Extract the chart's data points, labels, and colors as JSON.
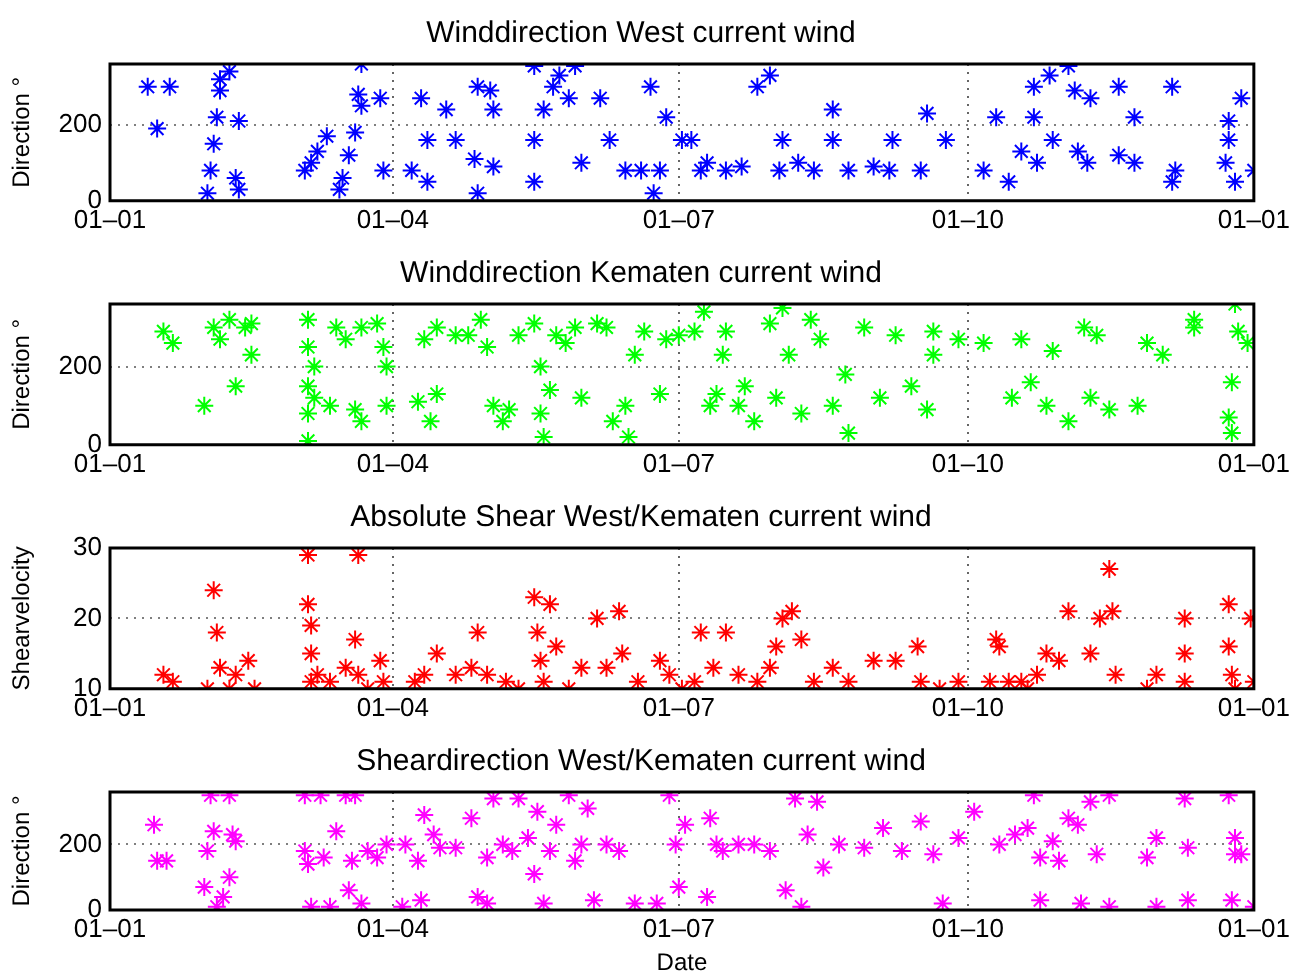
{
  "chart_data": [
    {
      "type": "scatter",
      "title": "Winddirection West current wind",
      "ylabel": "Direction °",
      "xlim": [
        "--01-01",
        "--12-31"
      ],
      "xticks": [
        {
          "value": "--01-01",
          "label": "01–01"
        },
        {
          "value": "--04-01",
          "label": "01–04"
        },
        {
          "value": "--07-01",
          "label": "01–07"
        },
        {
          "value": "--10-01",
          "label": "01–10"
        },
        {
          "value": "--12-31",
          "label": "01–01"
        }
      ],
      "ylim": [
        0,
        360
      ],
      "yticks": [
        0,
        200
      ],
      "grid": true,
      "marker": "cross",
      "x": [
        "--01-13",
        "--01-20",
        "--01-16",
        "--02-01",
        "--02-02",
        "--02-03",
        "--02-04",
        "--02-05",
        "--02-05",
        "--02-08",
        "--02-10",
        "--02-11",
        "--02-11",
        "--03-04",
        "--03-06",
        "--03-08",
        "--03-11",
        "--03-15",
        "--03-16",
        "--03-18",
        "--03-20",
        "--03-21",
        "--03-22",
        "--03-22",
        "--03-28",
        "--03-29",
        "--04-10",
        "--04-12",
        "--04-07",
        "--04-12",
        "--04-18",
        "--04-21",
        "--04-27",
        "--04-28",
        "--05-03",
        "--04-28",
        "--05-03",
        "--05-02",
        "--05-16",
        "--05-16",
        "--05-19",
        "--05-22",
        "--05-24",
        "--05-27",
        "--05-29",
        "--05-31",
        "--05-16",
        "--06-06",
        "--06-09",
        "--06-14",
        "--06-19",
        "--06-22",
        "--06-23",
        "--06-25",
        "--06-27",
        "--07-02",
        "--07-05",
        "--07-08",
        "--07-10",
        "--07-16",
        "--07-21",
        "--07-26",
        "--07-30",
        "--08-02",
        "--08-03",
        "--08-08",
        "--08-13",
        "--08-19",
        "--08-19",
        "--08-24",
        "--09-01",
        "--09-06",
        "--09-07",
        "--09-18",
        "--09-24",
        "--09-16",
        "--10-06",
        "--10-10",
        "--10-14",
        "--10-18",
        "--10-22",
        "--10-23",
        "--10-22",
        "--10-28",
        "--10-27",
        "--11-02",
        "--11-05",
        "--11-04",
        "--11-09",
        "--11-08",
        "--11-18",
        "--11-23",
        "--11-23",
        "--11-18",
        "--12-05",
        "--12-05",
        "--12-06",
        "--12-22",
        "--12-23",
        "--12-25",
        "--12-27",
        "--12-23",
        "--12-31"
      ],
      "series": [
        {
          "color": "#0000ff",
          "values": [
            300,
            300,
            190,
            20,
            80,
            150,
            220,
            290,
            320,
            340,
            60,
            210,
            30,
            80,
            100,
            130,
            170,
            30,
            60,
            120,
            180,
            280,
            360,
            250,
            270,
            80,
            270,
            160,
            80,
            50,
            240,
            160,
            110,
            300,
            240,
            20,
            90,
            290,
            355,
            50,
            240,
            300,
            330,
            270,
            355,
            100,
            160,
            270,
            160,
            80,
            80,
            300,
            20,
            80,
            220,
            160,
            160,
            80,
            100,
            80,
            90,
            300,
            330,
            80,
            160,
            100,
            80,
            240,
            160,
            80,
            90,
            80,
            160,
            230,
            160,
            80,
            80,
            220,
            50,
            130,
            300,
            100,
            220,
            160,
            330,
            355,
            130,
            290,
            270,
            100,
            300,
            220,
            100,
            120,
            300,
            50,
            80,
            100,
            160,
            50,
            270,
            210,
            80
          ]
        }
      ]
    },
    {
      "type": "scatter",
      "title": "Winddirection Kematen current wind",
      "ylabel": "Direction °",
      "xlim": [
        "--01-01",
        "--12-31"
      ],
      "xticks": [
        {
          "value": "--01-01",
          "label": "01–01"
        },
        {
          "value": "--04-01",
          "label": "01–04"
        },
        {
          "value": "--07-01",
          "label": "01–07"
        },
        {
          "value": "--10-01",
          "label": "01–10"
        },
        {
          "value": "--12-31",
          "label": "01–01"
        }
      ],
      "ylim": [
        0,
        360
      ],
      "yticks": [
        0,
        200
      ],
      "grid": true,
      "marker": "cross",
      "x": [
        "--01-18",
        "--01-21",
        "--01-31",
        "--02-03",
        "--02-05",
        "--02-08",
        "--02-10",
        "--02-13",
        "--02-15",
        "--02-15",
        "--03-05",
        "--03-05",
        "--03-05",
        "--03-05",
        "--03-05",
        "--03-07",
        "--03-07",
        "--03-12",
        "--03-14",
        "--03-17",
        "--03-20",
        "--03-22",
        "--03-22",
        "--03-27",
        "--03-29",
        "--03-30",
        "--03-30",
        "--04-09",
        "--04-11",
        "--04-13",
        "--04-15",
        "--04-15",
        "--04-21",
        "--04-25",
        "--04-29",
        "--05-01",
        "--05-03",
        "--05-06",
        "--05-08",
        "--05-11",
        "--05-16",
        "--05-18",
        "--05-18",
        "--05-19",
        "--05-21",
        "--05-23",
        "--05-26",
        "--05-29",
        "--05-31",
        "--06-05",
        "--06-08",
        "--06-10",
        "--06-14",
        "--06-15",
        "--06-17",
        "--06-20",
        "--06-25",
        "--06-27",
        "--07-01",
        "--07-06",
        "--07-09",
        "--07-11",
        "--07-13",
        "--07-15",
        "--07-16",
        "--07-20",
        "--07-22",
        "--07-25",
        "--07-30",
        "--08-01",
        "--08-03",
        "--08-05",
        "--08-09",
        "--08-12",
        "--08-15",
        "--08-19",
        "--08-24",
        "--08-23",
        "--08-29",
        "--09-03",
        "--09-08",
        "--09-13",
        "--09-18",
        "--09-20",
        "--09-20",
        "--09-28",
        "--10-06",
        "--10-15",
        "--10-18",
        "--10-21",
        "--10-26",
        "--10-28",
        "--11-02",
        "--11-07",
        "--11-09",
        "--11-11",
        "--11-15",
        "--11-24",
        "--11-27",
        "--12-02",
        "--12-12",
        "--12-12",
        "--12-23",
        "--12-24",
        "--12-24",
        "--12-25",
        "--12-26",
        "--12-29"
      ],
      "series": [
        {
          "color": "#00ff00",
          "values": [
            290,
            260,
            100,
            300,
            270,
            320,
            150,
            300,
            230,
            310,
            320,
            250,
            150,
            80,
            10,
            200,
            120,
            100,
            300,
            270,
            90,
            60,
            300,
            310,
            250,
            100,
            200,
            110,
            270,
            60,
            130,
            300,
            280,
            280,
            320,
            250,
            100,
            60,
            90,
            280,
            310,
            200,
            80,
            20,
            140,
            280,
            260,
            300,
            120,
            310,
            300,
            60,
            100,
            20,
            230,
            290,
            130,
            270,
            280,
            290,
            340,
            100,
            130,
            230,
            290,
            100,
            150,
            60,
            310,
            120,
            350,
            230,
            80,
            320,
            270,
            100,
            30,
            180,
            300,
            120,
            280,
            150,
            90,
            230,
            290,
            270,
            260,
            120,
            270,
            160,
            100,
            240,
            60,
            300,
            120,
            280,
            90,
            100,
            260,
            230,
            300,
            320,
            70,
            30,
            160,
            360,
            290,
            260
          ]
        }
      ]
    },
    {
      "type": "scatter",
      "title": "Absolute Shear West/Kematen current wind",
      "ylabel": "Shearvelocity",
      "xlim": [
        "--01-01",
        "--12-31"
      ],
      "xticks": [
        {
          "value": "--01-01",
          "label": "01–01"
        },
        {
          "value": "--04-01",
          "label": "01–04"
        },
        {
          "value": "--07-01",
          "label": "01–07"
        },
        {
          "value": "--10-01",
          "label": "01–10"
        },
        {
          "value": "--12-31",
          "label": "01–01"
        }
      ],
      "ylim": [
        10,
        30
      ],
      "yticks": [
        10,
        20,
        30
      ],
      "grid": true,
      "marker": "cross",
      "x": [
        "--01-18",
        "--01-21",
        "--02-01",
        "--02-03",
        "--02-04",
        "--02-05",
        "--02-08",
        "--02-10",
        "--02-14",
        "--02-16",
        "--03-05",
        "--03-05",
        "--03-06",
        "--03-06",
        "--03-06",
        "--03-08",
        "--03-12",
        "--03-17",
        "--03-20",
        "--03-21",
        "--03-21",
        "--03-24",
        "--03-28",
        "--03-29",
        "--04-08",
        "--04-11",
        "--04-15",
        "--04-21",
        "--04-26",
        "--04-28",
        "--05-01",
        "--05-07",
        "--05-11",
        "--05-16",
        "--05-17",
        "--05-18",
        "--05-19",
        "--05-21",
        "--05-23",
        "--05-27",
        "--05-31",
        "--06-05",
        "--06-08",
        "--06-12",
        "--06-13",
        "--06-18",
        "--06-25",
        "--06-28",
        "--07-02",
        "--07-06",
        "--07-08",
        "--07-12",
        "--07-16",
        "--07-20",
        "--07-26",
        "--07-30",
        "--08-01",
        "--08-03",
        "--08-06",
        "--08-09",
        "--08-13",
        "--08-19",
        "--08-24",
        "--09-01",
        "--09-08",
        "--09-15",
        "--09-16",
        "--09-22",
        "--09-28",
        "--10-08",
        "--10-10",
        "--10-11",
        "--10-14",
        "--10-18",
        "--10-20",
        "--10-23",
        "--10-26",
        "--10-30",
        "--11-02",
        "--11-09",
        "--11-12",
        "--11-15",
        "--11-16",
        "--11-17",
        "--11-27",
        "--11-30",
        "--12-09",
        "--12-09",
        "--12-09",
        "--12-23",
        "--12-23",
        "--12-24",
        "--12-25",
        "--12-30",
        "--12-31"
      ],
      "series": [
        {
          "color": "#ff0000",
          "values": [
            12,
            11,
            10,
            24,
            18,
            13,
            10,
            12,
            14,
            10,
            29,
            22,
            19,
            15,
            11,
            12,
            11,
            13,
            17,
            12,
            29,
            10,
            14,
            11,
            11,
            12,
            15,
            12,
            13,
            18,
            12,
            11,
            10,
            23,
            18,
            14,
            11,
            22,
            16,
            10,
            13,
            20,
            13,
            21,
            15,
            11,
            14,
            12,
            10,
            11,
            18,
            13,
            18,
            12,
            11,
            13,
            16,
            20,
            21,
            17,
            11,
            13,
            11,
            14,
            14,
            16,
            11,
            10,
            11,
            11,
            17,
            16,
            11,
            11,
            10,
            12,
            15,
            14,
            21,
            15,
            20,
            27,
            21,
            12,
            10,
            12,
            20,
            15,
            11,
            22,
            16,
            12,
            10,
            20,
            11
          ]
        }
      ]
    },
    {
      "type": "scatter",
      "title": "Sheardirection West/Kematen current wind",
      "ylabel": "Direction °",
      "xlabel": "Date",
      "xlim": [
        "--01-01",
        "--12-31"
      ],
      "xticks": [
        {
          "value": "--01-01",
          "label": "01–01"
        },
        {
          "value": "--04-01",
          "label": "01–04"
        },
        {
          "value": "--07-01",
          "label": "01–07"
        },
        {
          "value": "--10-01",
          "label": "01–10"
        },
        {
          "value": "--12-31",
          "label": "01–01"
        }
      ],
      "ylim": [
        0,
        360
      ],
      "yticks": [
        0,
        200
      ],
      "grid": true,
      "marker": "cross",
      "x": [
        "--01-15",
        "--01-16",
        "--01-19",
        "--01-31",
        "--02-01",
        "--02-02",
        "--02-03",
        "--02-04",
        "--02-06",
        "--02-08",
        "--02-08",
        "--02-09",
        "--02-10",
        "--03-04",
        "--03-04",
        "--03-05",
        "--03-06",
        "--03-09",
        "--03-10",
        "--03-12",
        "--03-14",
        "--03-17",
        "--03-18",
        "--03-19",
        "--03-20",
        "--03-22",
        "--03-24",
        "--03-27",
        "--03-30",
        "--04-04",
        "--04-05",
        "--04-09",
        "--04-10",
        "--04-11",
        "--04-14",
        "--04-16",
        "--04-21",
        "--04-26",
        "--04-28",
        "--05-01",
        "--05-01",
        "--05-03",
        "--05-06",
        "--05-09",
        "--05-11",
        "--05-14",
        "--05-16",
        "--05-17",
        "--05-19",
        "--05-21",
        "--05-23",
        "--05-27",
        "--05-29",
        "--05-31",
        "--06-02",
        "--06-04",
        "--06-08",
        "--06-12",
        "--06-17",
        "--06-24",
        "--06-28",
        "--06-30",
        "--07-01",
        "--07-03",
        "--07-10",
        "--07-11",
        "--07-13",
        "--07-15",
        "--07-20",
        "--07-25",
        "--07-30",
        "--08-04",
        "--08-07",
        "--08-09",
        "--08-11",
        "--08-14",
        "--08-16",
        "--08-21",
        "--08-29",
        "--09-04",
        "--09-10",
        "--09-16",
        "--09-20",
        "--09-23",
        "--09-28",
        "--10-03",
        "--10-11",
        "--10-16",
        "--10-20",
        "--10-22",
        "--10-24",
        "--10-24",
        "--10-28",
        "--10-30",
        "--11-02",
        "--11-05",
        "--11-06",
        "--11-09",
        "--11-11",
        "--11-15",
        "--11-15",
        "--11-27",
        "--11-30",
        "--11-30",
        "--12-09",
        "--12-10",
        "--12-10",
        "--12-23",
        "--12-24",
        "--12-25",
        "--12-25",
        "--12-27",
        "--12-31"
      ],
      "series": [
        {
          "color": "#ff00ff",
          "values": [
            260,
            150,
            150,
            70,
            180,
            350,
            240,
            10,
            40,
            350,
            100,
            230,
            210,
            350,
            180,
            140,
            10,
            350,
            160,
            10,
            240,
            350,
            60,
            150,
            350,
            20,
            180,
            160,
            200,
            10,
            200,
            150,
            30,
            290,
            230,
            190,
            190,
            280,
            40,
            20,
            160,
            340,
            200,
            180,
            340,
            220,
            110,
            300,
            20,
            180,
            260,
            350,
            150,
            200,
            310,
            30,
            200,
            180,
            20,
            20,
            350,
            200,
            70,
            260,
            40,
            280,
            200,
            180,
            200,
            200,
            180,
            60,
            340,
            10,
            230,
            330,
            130,
            200,
            190,
            250,
            180,
            270,
            170,
            20,
            220,
            300,
            200,
            230,
            250,
            350,
            160,
            30,
            210,
            150,
            280,
            260,
            20,
            330,
            170,
            350,
            10,
            160,
            220,
            10,
            340,
            190,
            30,
            350,
            30,
            170,
            220,
            170,
            10
          ]
        }
      ]
    }
  ]
}
